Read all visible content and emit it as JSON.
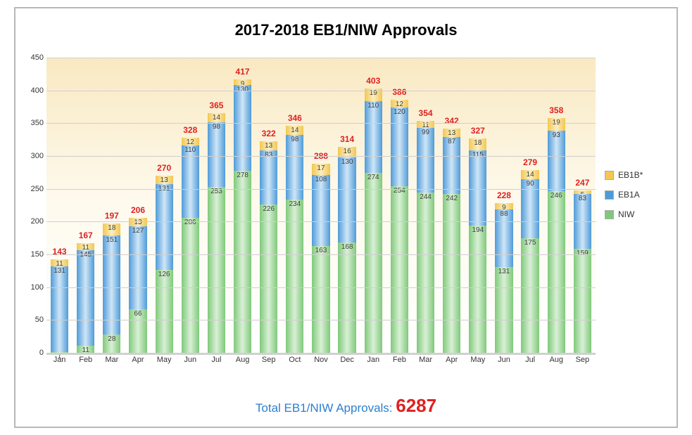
{
  "title": "2017-2018 EB1/NIW Approvals",
  "footer_label": "Total EB1/NIW Approvals: ",
  "footer_value": "6287",
  "ylim": [
    0,
    450
  ],
  "ytick_step": 50,
  "chart": {
    "type": "stacked-bar",
    "background_gradient": [
      "#f9e9c2",
      "#ffffff"
    ],
    "grid_color": "#cfcfcf",
    "total_label_color": "#e02020",
    "value_label_color": "#404040",
    "value_fontsize": 10,
    "total_fontsize": 12,
    "title_fontsize": 22
  },
  "series": [
    {
      "key": "eb1b",
      "label": "EB1B*",
      "color": "#f3c751"
    },
    {
      "key": "eb1a",
      "label": "EB1A",
      "color": "#4f9bd9"
    },
    {
      "key": "niw",
      "label": "NIW",
      "color": "#7fc97a"
    }
  ],
  "categories": [
    "Jan",
    "Feb",
    "Mar",
    "Apr",
    "May",
    "Jun",
    "Jul",
    "Aug",
    "Sep",
    "Oct",
    "Nov",
    "Dec",
    "Jan",
    "Feb",
    "Mar",
    "Apr",
    "May",
    "Jun",
    "Jul",
    "Aug",
    "Sep"
  ],
  "data": [
    {
      "niw": 1,
      "eb1a": 131,
      "eb1b": 11,
      "total": 143
    },
    {
      "niw": 11,
      "eb1a": 145,
      "eb1b": 11,
      "total": 167
    },
    {
      "niw": 28,
      "eb1a": 151,
      "eb1b": 18,
      "total": 197
    },
    {
      "niw": 66,
      "eb1a": 127,
      "eb1b": 13,
      "total": 206
    },
    {
      "niw": 126,
      "eb1a": 131,
      "eb1b": 13,
      "total": 270
    },
    {
      "niw": 206,
      "eb1a": 110,
      "eb1b": 12,
      "total": 328
    },
    {
      "niw": 253,
      "eb1a": 98,
      "eb1b": 14,
      "total": 365
    },
    {
      "niw": 278,
      "eb1a": 130,
      "eb1b": 9,
      "total": 417
    },
    {
      "niw": 226,
      "eb1a": 83,
      "eb1b": 13,
      "total": 322
    },
    {
      "niw": 234,
      "eb1a": 98,
      "eb1b": 14,
      "total": 346
    },
    {
      "niw": 163,
      "eb1a": 108,
      "eb1b": 17,
      "total": 288
    },
    {
      "niw": 168,
      "eb1a": 130,
      "eb1b": 16,
      "total": 314
    },
    {
      "niw": 274,
      "eb1a": 110,
      "eb1b": 19,
      "total": 403
    },
    {
      "niw": 254,
      "eb1a": 120,
      "eb1b": 12,
      "total": 386
    },
    {
      "niw": 244,
      "eb1a": 99,
      "eb1b": 11,
      "total": 354
    },
    {
      "niw": 242,
      "eb1a": 87,
      "eb1b": 13,
      "total": 342
    },
    {
      "niw": 194,
      "eb1a": 115,
      "eb1b": 18,
      "total": 327
    },
    {
      "niw": 131,
      "eb1a": 88,
      "eb1b": 9,
      "total": 228
    },
    {
      "niw": 175,
      "eb1a": 90,
      "eb1b": 14,
      "total": 279
    },
    {
      "niw": 246,
      "eb1a": 93,
      "eb1b": 19,
      "total": 358
    },
    {
      "niw": 159,
      "eb1a": 83,
      "eb1b": 5,
      "total": 247
    }
  ]
}
